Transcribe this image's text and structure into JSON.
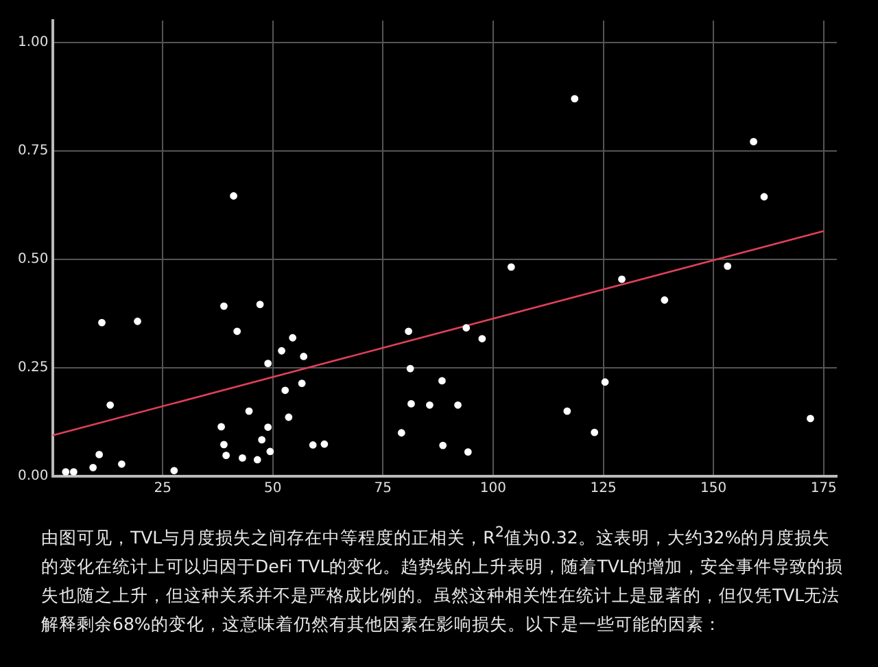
{
  "chart_data": {
    "type": "scatter",
    "xlim": [
      0,
      178
    ],
    "ylim": [
      0,
      1.05
    ],
    "xticks": [
      25,
      50,
      75,
      100,
      125,
      150,
      175
    ],
    "yticks": [
      {
        "value": 0,
        "label": "0.00"
      },
      {
        "value": 0.25,
        "label": "0.25"
      },
      {
        "value": 0.5,
        "label": "0.50"
      },
      {
        "value": 0.75,
        "label": "0.75"
      },
      {
        "value": 1,
        "label": "1.00"
      }
    ],
    "grid": true,
    "series": [
      {
        "type": "scatter",
        "marker": "circle",
        "color": "#ffffff",
        "x": [
          3.0,
          4.8,
          9.2,
          10.6,
          11.2,
          13.1,
          15.7,
          19.3,
          27.6,
          38.9,
          38.3,
          38.9,
          39.4,
          41.1,
          41.9,
          43.1,
          44.6,
          46.5,
          47.1,
          47.5,
          48.9,
          48.9,
          49.4,
          52.0,
          52.8,
          53.6,
          54.5,
          57.0,
          56.6,
          59.1,
          61.7,
          79.2,
          80.8,
          81.2,
          81.4,
          85.6,
          88.4,
          88.6,
          92.0,
          93.9,
          94.3,
          97.5,
          104.1,
          116.8,
          118.5,
          123.0,
          125.4,
          129.2,
          138.9,
          153.2,
          159.1,
          161.5,
          172.0
        ],
        "values": [
          0.01,
          0.01,
          0.02,
          0.05,
          0.354,
          0.164,
          0.028,
          0.357,
          0.013,
          0.392,
          0.114,
          0.073,
          0.048,
          0.646,
          0.334,
          0.042,
          0.15,
          0.038,
          0.396,
          0.084,
          0.26,
          0.113,
          0.057,
          0.289,
          0.198,
          0.136,
          0.319,
          0.276,
          0.214,
          0.072,
          0.074,
          0.1,
          0.334,
          0.248,
          0.167,
          0.164,
          0.22,
          0.071,
          0.164,
          0.342,
          0.056,
          0.317,
          0.482,
          0.15,
          0.87,
          0.101,
          0.217,
          0.454,
          0.406,
          0.484,
          0.771,
          0.644,
          0.133
        ]
      },
      {
        "type": "line",
        "marker": "none",
        "color": "#e0405a",
        "x": [
          0,
          175
        ],
        "values": [
          0.094,
          0.565
        ]
      }
    ],
    "annotations": [
      "由图可见，TVL与月度损失之间存在中等程度的正相关，R$^{2}$值为0.32。这表明，大约32%的月度损失的变化在统计上可以归因于DeFi TVL的变化。趋势线的上升表明，随着TVL的增加，安全事件导致的损失也随之上升，但这种关系并不是严格成比例的。虽然这种相关性在统计上是显著的，但仅凭TVL无法解释剩余68%的变化，这意味着仍然有其他因素在影响损失。以下是一些可能的因素："
    ]
  }
}
